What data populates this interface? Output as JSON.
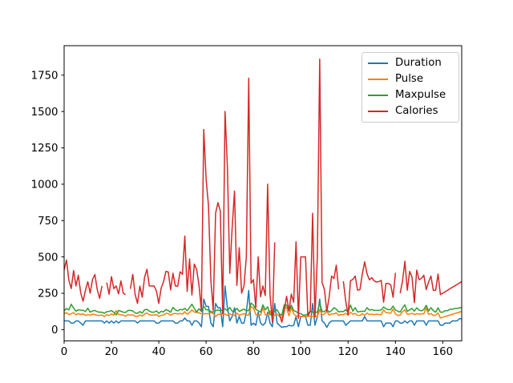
{
  "chart_data": {
    "type": "line",
    "title": "",
    "xlabel": "",
    "ylabel": "",
    "x_is_index": true,
    "n_points": 169,
    "xlim": [
      0,
      168
    ],
    "ylim": [
      -77.27,
      1952.67
    ],
    "x_ticks": [
      0,
      20,
      40,
      60,
      80,
      100,
      120,
      140,
      160
    ],
    "y_ticks": [
      0,
      250,
      500,
      750,
      1000,
      1250,
      1500,
      1750
    ],
    "grid": false,
    "legend_position": "upper right",
    "background_color": "#ffffff",
    "spine_color": "#000000",
    "legend_border_color": "#cccccc",
    "series": [
      {
        "name": "Duration",
        "color": "#1f77b4",
        "values": [
          60,
          60,
          60,
          45,
          45,
          60,
          60,
          45,
          30,
          60,
          60,
          60,
          60,
          60,
          60,
          60,
          60,
          45,
          60,
          45,
          60,
          45,
          60,
          45,
          60,
          60,
          60,
          60,
          60,
          60,
          60,
          45,
          60,
          60,
          60,
          60,
          60,
          60,
          60,
          45,
          45,
          60,
          60,
          60,
          60,
          60,
          60,
          45,
          45,
          60,
          60,
          80,
          60,
          60,
          30,
          60,
          60,
          45,
          20,
          210,
          160,
          160,
          45,
          20,
          180,
          150,
          150,
          20,
          300,
          150,
          60,
          90,
          150,
          45,
          90,
          45,
          45,
          120,
          270,
          30,
          45,
          30,
          120,
          45,
          30,
          45,
          120,
          45,
          20,
          180,
          45,
          30,
          15,
          20,
          20,
          30,
          25,
          30,
          90,
          20,
          90,
          90,
          90,
          30,
          30,
          180,
          30,
          90,
          210,
          60,
          45,
          15,
          45,
          60,
          60,
          60,
          60,
          60,
          60,
          30,
          45,
          60,
          60,
          60,
          60,
          60,
          60,
          90,
          60,
          60,
          60,
          60,
          60,
          60,
          60,
          20,
          45,
          45,
          45,
          20,
          60,
          60,
          45,
          45,
          60,
          45,
          60,
          60,
          30,
          60,
          60,
          60,
          60,
          30,
          60,
          60,
          60,
          60,
          60,
          30,
          30,
          45,
          45,
          45,
          60,
          60,
          60,
          75,
          75
        ]
      },
      {
        "name": "Pulse",
        "color": "#ff7f0e",
        "values": [
          110,
          117,
          103,
          109,
          117,
          102,
          110,
          104,
          109,
          98,
          103,
          100,
          106,
          104,
          98,
          98,
          100,
          90,
          103,
          97,
          108,
          100,
          130,
          105,
          102,
          100,
          92,
          103,
          100,
          102,
          92,
          90,
          101,
          93,
          107,
          114,
          102,
          100,
          100,
          104,
          90,
          98,
          100,
          111,
          111,
          99,
          109,
          111,
          108,
          111,
          107,
          123,
          106,
          118,
          136,
          121,
          118,
          115,
          110,
          108,
          110,
          109,
          118,
          110,
          90,
          105,
          107,
          106,
          108,
          97,
          109,
          100,
          97,
          114,
          98,
          105,
          110,
          100,
          100,
          159,
          149,
          103,
          100,
          100,
          151,
          102,
          100,
          129,
          83,
          101,
          107,
          90,
          80,
          150,
          151,
          95,
          152,
          109,
          93,
          95,
          90,
          90,
          90,
          92,
          93,
          90,
          90,
          90,
          137,
          102,
          107,
          124,
          100,
          108,
          108,
          116,
          97,
          105,
          103,
          112,
          100,
          119,
          107,
          111,
          98,
          97,
          109,
          99,
          114,
          104,
          107,
          103,
          106,
          104,
          103,
          136,
          117,
          115,
          113,
          141,
          108,
          97,
          100,
          122,
          136,
          106,
          107,
          112,
          103,
          110,
          106,
          109,
          109,
          150,
          105,
          111,
          97,
          100,
          114,
          80,
          85,
          90,
          95,
          100,
          105,
          110,
          115,
          120,
          125
        ]
      },
      {
        "name": "Maxpulse",
        "color": "#2ca02c",
        "values": [
          130,
          145,
          135,
          175,
          148,
          127,
          136,
          134,
          133,
          124,
          147,
          120,
          128,
          132,
          123,
          120,
          120,
          112,
          123,
          125,
          131,
          119,
          101,
          132,
          126,
          120,
          118,
          132,
          132,
          129,
          115,
          112,
          124,
          113,
          136,
          140,
          127,
          120,
          120,
          129,
          112,
          126,
          122,
          138,
          131,
          119,
          153,
          136,
          129,
          139,
          136,
          146,
          130,
          151,
          175,
          146,
          121,
          144,
          125,
          160,
          137,
          135,
          124,
          120,
          130,
          135,
          130,
          136,
          143,
          129,
          153,
          127,
          127,
          146,
          125,
          134,
          141,
          130,
          131,
          182,
          169,
          139,
          130,
          120,
          170,
          136,
          157,
          103,
          107,
          127,
          137,
          107,
          100,
          171,
          168,
          128,
          168,
          131,
          124,
          112,
          110,
          100,
          100,
          108,
          128,
          120,
          120,
          120,
          184,
          124,
          124,
          139,
          120,
          131,
          151,
          141,
          122,
          125,
          124,
          137,
          120,
          169,
          127,
          151,
          122,
          124,
          127,
          125,
          151,
          134,
          138,
          133,
          132,
          132,
          136,
          156,
          143,
          137,
          138,
          162,
          135,
          127,
          120,
          149,
          170,
          126,
          136,
          146,
          127,
          150,
          134,
          129,
          138,
          167,
          128,
          151,
          131,
          120,
          150,
          120,
          120,
          130,
          130,
          140,
          140,
          145,
          145,
          150,
          150
        ]
      },
      {
        "name": "Calories",
        "color": "#d62728",
        "values": [
          409.1,
          479.0,
          340.0,
          282.4,
          406.0,
          300.5,
          374.0,
          253.3,
          195.1,
          269.0,
          329.3,
          250.7,
          345.3,
          379.3,
          275.0,
          215.2,
          300.0,
          null,
          323.0,
          243.0,
          364.2,
          282.0,
          300.0,
          246.0,
          334.5,
          250.0,
          241.0,
          null,
          280.0,
          380.3,
          243.0,
          180.1,
          299.0,
          223.0,
          361.0,
          415.1,
          300.5,
          300.1,
          300.0,
          266.0,
          180.1,
          286.0,
          329.4,
          400.0,
          397.0,
          273.0,
          387.6,
          300.0,
          298.0,
          397.6,
          380.2,
          643.1,
          263.0,
          486.0,
          238.0,
          450.7,
          413.0,
          305.0,
          126.4,
          1376.0,
          1034.4,
          853.0,
          341.0,
          131.4,
          800.4,
          873.4,
          816.0,
          110.4,
          1500.2,
          1115.0,
          387.6,
          700.0,
          953.2,
          304.0,
          563.2,
          251.0,
          300.0,
          500.4,
          1729.0,
          319.2,
          344.0,
          151.1,
          500.0,
          225.3,
          300.1,
          234.0,
          1000.1,
          242.0,
          50.3,
          600.1,
          null,
          105.3,
          50.5,
          127.4,
          229.4,
          128.2,
          244.2,
          188.2,
          604.1,
          77.7,
          500.0,
          500.0,
          500.4,
          92.7,
          124.0,
          800.3,
          86.2,
          500.3,
          1860.4,
          325.2,
          275.0,
          124.2,
          225.3,
          367.6,
          351.7,
          443.0,
          277.4,
          null,
          332.7,
          193.9,
          100.7,
          336.7,
          344.9,
          368.5,
          271.0,
          275.3,
          382.0,
          466.4,
          384.0,
          342.5,
          357.5,
          335.0,
          327.5,
          330.0,
          339.0,
          189.0,
          317.7,
          318.0,
          308.0,
          222.4,
          390.0,
          null,
          250.4,
          335.4,
          470.2,
          270.8,
          400.0,
          361.9,
          185.0,
          409.4,
          343.0,
          353.2,
          374.0,
          275.8,
          328.0,
          368.5,
          270.4,
          270.4,
          382.8,
          240.9,
          250.4,
          260.4,
          270.0,
          280.9,
          290.8,
          300.0,
          310.2,
          320.4,
          330.4
        ]
      }
    ]
  }
}
